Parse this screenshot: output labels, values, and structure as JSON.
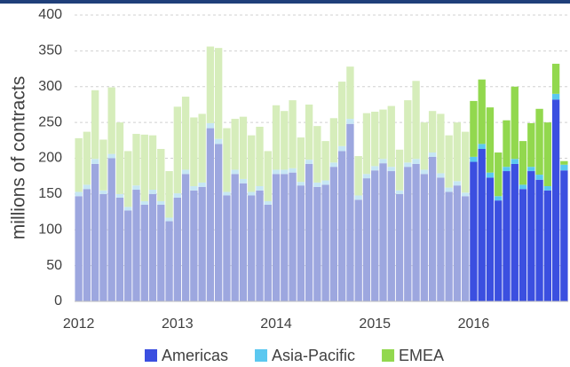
{
  "chart_data": {
    "type": "stacked_bar",
    "y_label": "millions of contracts",
    "categories": [
      "2012",
      null,
      null,
      null,
      null,
      null,
      null,
      null,
      null,
      null,
      null,
      null,
      "2013",
      null,
      null,
      null,
      null,
      null,
      null,
      null,
      null,
      null,
      null,
      null,
      "2014",
      null,
      null,
      null,
      null,
      null,
      null,
      null,
      null,
      null,
      null,
      null,
      "2015",
      null,
      null,
      null,
      null,
      null,
      null,
      null,
      null,
      null,
      null,
      null,
      "2016",
      null,
      null,
      null,
      null,
      null,
      null,
      null,
      null,
      null,
      null,
      null
    ],
    "ylim": [
      0,
      400
    ],
    "yticks": [
      0,
      50,
      100,
      150,
      200,
      250,
      300,
      350,
      400
    ],
    "grid": true,
    "series": [
      {
        "name": "Americas",
        "color": "#3b4fe0",
        "values": [
          147,
          157,
          192,
          150,
          200,
          145,
          127,
          156,
          135,
          150,
          135,
          112,
          145,
          178,
          155,
          160,
          242,
          220,
          148,
          178,
          165,
          148,
          155,
          135,
          178,
          178,
          180,
          162,
          192,
          160,
          163,
          188,
          210,
          248,
          142,
          172,
          183,
          193,
          182,
          150,
          188,
          192,
          178,
          202,
          173,
          153,
          162,
          147,
          195,
          213,
          173,
          141,
          182,
          192,
          157,
          182,
          170,
          155,
          282,
          183
        ],
        "colors": [
          "#9da7df",
          "#9da7df",
          "#9da7df",
          "#9da7df",
          "#9da7df",
          "#9da7df",
          "#9da7df",
          "#9da7df",
          "#9da7df",
          "#9da7df",
          "#9da7df",
          "#9da7df",
          "#9da7df",
          "#9da7df",
          "#9da7df",
          "#9da7df",
          "#9da7df",
          "#9da7df",
          "#9da7df",
          "#9da7df",
          "#9da7df",
          "#9da7df",
          "#9da7df",
          "#9da7df",
          "#9da7df",
          "#9da7df",
          "#9da7df",
          "#9da7df",
          "#9da7df",
          "#9da7df",
          "#9da7df",
          "#9da7df",
          "#9da7df",
          "#9da7df",
          "#9da7df",
          "#9da7df",
          "#9da7df",
          "#9da7df",
          "#9da7df",
          "#9da7df",
          "#9da7df",
          "#9da7df",
          "#9da7df",
          "#9da7df",
          "#9da7df",
          "#9da7df",
          "#9da7df",
          "#9da7df",
          "#3b4fe0",
          "#3b4fe0",
          "#3b4fe0",
          "#3b4fe0",
          "#3b4fe0",
          "#3b4fe0",
          "#3b4fe0",
          "#3b4fe0",
          "#3b4fe0",
          "#3b4fe0",
          "#3b4fe0",
          "#3b4fe0"
        ]
      },
      {
        "name": "Asia-Pacific",
        "color": "#5bc8f0",
        "values": [
          6,
          6,
          7,
          5,
          6,
          5,
          5,
          6,
          5,
          6,
          5,
          5,
          6,
          6,
          6,
          6,
          7,
          7,
          5,
          6,
          6,
          5,
          6,
          5,
          6,
          6,
          6,
          5,
          6,
          6,
          6,
          6,
          7,
          7,
          6,
          6,
          6,
          6,
          6,
          5,
          6,
          7,
          6,
          6,
          6,
          6,
          6,
          5,
          7,
          7,
          7,
          6,
          6,
          7,
          6,
          6,
          7,
          6,
          8,
          8
        ],
        "colors": [
          "#c6e6f4",
          "#c6e6f4",
          "#c6e6f4",
          "#c6e6f4",
          "#c6e6f4",
          "#c6e6f4",
          "#c6e6f4",
          "#c6e6f4",
          "#c6e6f4",
          "#c6e6f4",
          "#c6e6f4",
          "#c6e6f4",
          "#c6e6f4",
          "#c6e6f4",
          "#c6e6f4",
          "#c6e6f4",
          "#c6e6f4",
          "#c6e6f4",
          "#c6e6f4",
          "#c6e6f4",
          "#c6e6f4",
          "#c6e6f4",
          "#c6e6f4",
          "#c6e6f4",
          "#c6e6f4",
          "#c6e6f4",
          "#c6e6f4",
          "#c6e6f4",
          "#c6e6f4",
          "#c6e6f4",
          "#c6e6f4",
          "#c6e6f4",
          "#c6e6f4",
          "#c6e6f4",
          "#c6e6f4",
          "#c6e6f4",
          "#c6e6f4",
          "#c6e6f4",
          "#c6e6f4",
          "#c6e6f4",
          "#c6e6f4",
          "#c6e6f4",
          "#c6e6f4",
          "#c6e6f4",
          "#c6e6f4",
          "#c6e6f4",
          "#c6e6f4",
          "#c6e6f4",
          "#5bc8f0",
          "#5bc8f0",
          "#5bc8f0",
          "#5bc8f0",
          "#5bc8f0",
          "#5bc8f0",
          "#5bc8f0",
          "#5bc8f0",
          "#5bc8f0",
          "#5bc8f0",
          "#5bc8f0",
          "#5bc8f0"
        ]
      },
      {
        "name": "EMEA",
        "color": "#92d84e",
        "values": [
          75,
          74,
          96,
          71,
          93,
          100,
          78,
          72,
          93,
          76,
          73,
          65,
          121,
          102,
          96,
          96,
          107,
          127,
          89,
          71,
          87,
          79,
          83,
          70,
          90,
          82,
          95,
          62,
          77,
          79,
          55,
          62,
          90,
          73,
          55,
          85,
          76,
          69,
          85,
          57,
          87,
          109,
          66,
          58,
          83,
          73,
          82,
          85,
          78,
          90,
          91,
          61,
          65,
          101,
          61,
          61,
          92,
          89,
          42,
          5
        ],
        "colors": [
          "#d6edbb",
          "#d6edbb",
          "#d6edbb",
          "#d6edbb",
          "#d6edbb",
          "#d6edbb",
          "#d6edbb",
          "#d6edbb",
          "#d6edbb",
          "#d6edbb",
          "#d6edbb",
          "#d6edbb",
          "#d6edbb",
          "#d6edbb",
          "#d6edbb",
          "#d6edbb",
          "#d6edbb",
          "#d6edbb",
          "#d6edbb",
          "#d6edbb",
          "#d6edbb",
          "#d6edbb",
          "#d6edbb",
          "#d6edbb",
          "#d6edbb",
          "#d6edbb",
          "#d6edbb",
          "#d6edbb",
          "#d6edbb",
          "#d6edbb",
          "#d6edbb",
          "#d6edbb",
          "#d6edbb",
          "#d6edbb",
          "#d6edbb",
          "#d6edbb",
          "#d6edbb",
          "#d6edbb",
          "#d6edbb",
          "#d6edbb",
          "#d6edbb",
          "#d6edbb",
          "#d6edbb",
          "#d6edbb",
          "#d6edbb",
          "#d6edbb",
          "#d6edbb",
          "#d6edbb",
          "#92d84e",
          "#92d84e",
          "#92d84e",
          "#92d84e",
          "#92d84e",
          "#92d84e",
          "#92d84e",
          "#92d84e",
          "#92d84e",
          "#92d84e",
          "#92d84e",
          "#92d84e"
        ]
      }
    ]
  }
}
